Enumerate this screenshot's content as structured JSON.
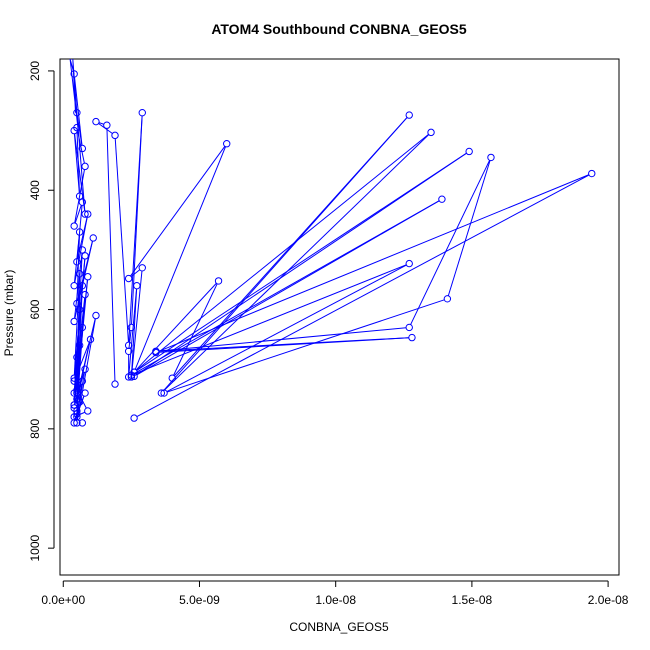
{
  "chart_data": {
    "type": "line",
    "title": "ATOM4 Southbound CONBNA_GEOS5",
    "xlabel": "CONBNA_GEOS5",
    "ylabel": "Pressure (mbar)",
    "xlim": [
      -1.2e-10,
      2.04e-08
    ],
    "ylim": [
      1045,
      180
    ],
    "y_axis": "inverted",
    "grid": false,
    "legend": "none",
    "marker": "open circle",
    "x_ticks": [
      0,
      5e-09,
      1e-08,
      1.5e-08,
      2e-08
    ],
    "x_tick_labels": [
      "0.0e+00",
      "5.0e-09",
      "1.0e-08",
      "1.5e-08",
      "2.0e-08"
    ],
    "y_ticks": [
      200,
      400,
      600,
      800,
      1000
    ],
    "y_tick_labels": [
      "200",
      "400",
      "600",
      "800",
      "1000"
    ],
    "colors": {
      "series": "#0000ff",
      "axis": "#000000"
    },
    "series": [
      {
        "x": [
          4e-10,
          7e-10,
          5e-10,
          8e-10,
          4e-10,
          6e-10,
          5e-10,
          8e-10,
          4e-10,
          7e-10,
          5e-10,
          9e-10,
          4e-10,
          6e-10,
          5e-10,
          1.1e-09,
          4e-10,
          7e-10,
          5e-10,
          8e-10,
          4e-10,
          6e-10,
          5e-10,
          9e-10,
          4e-10,
          7e-10,
          5e-10,
          8e-10,
          4e-10,
          6e-10,
          5e-10,
          1.2e-09,
          4e-10,
          7e-10,
          5e-10,
          1e-09,
          4e-10,
          6e-10,
          5e-10,
          8e-10,
          4e-10,
          7e-10,
          5e-10,
          8e-10,
          4e-10,
          6e-10,
          5e-10,
          9e-10,
          4e-10,
          7e-10
        ],
        "y": [
          205,
          330,
          270,
          440,
          300,
          410,
          295,
          360,
          460,
          420,
          520,
          440,
          560,
          470,
          590,
          480,
          620,
          500,
          680,
          510,
          715,
          540,
          740,
          545,
          760,
          560,
          770,
          575,
          740,
          600,
          790,
          610,
          765,
          630,
          750,
          650,
          720,
          660,
          780,
          700,
          760,
          720,
          775,
          740,
          790,
          755,
          735,
          770,
          780,
          790
        ]
      },
      {
        "x": [
          1.9e-09,
          1.6e-09,
          1.2e-09,
          1.9e-09,
          2.4e-09,
          2.9e-09,
          2.5e-09,
          2.4e-09,
          2.4e-09,
          2.7e-09,
          2.5e-09,
          2.9e-09,
          2.4e-09,
          6e-09,
          2.6e-09,
          5.7e-09,
          4e-09,
          1.27e-08,
          3.6e-09,
          1.35e-08,
          2.6e-09,
          1.49e-08,
          2.6e-09,
          1.39e-08,
          2.5e-09,
          1.27e-08,
          3.7e-09,
          1.41e-08,
          1.57e-08,
          1.27e-08,
          3.4e-09,
          1.28e-08,
          3.4e-09,
          1.94e-08,
          2.6e-09
        ],
        "y": [
          725,
          291,
          285,
          308,
          660,
          270,
          630,
          670,
          713,
          560,
          713,
          530,
          548,
          322,
          705,
          552,
          715,
          274,
          740,
          303,
          705,
          335,
          712,
          415,
          710,
          523,
          740,
          582,
          345,
          630,
          670,
          647,
          672,
          372,
          782
        ]
      }
    ]
  }
}
